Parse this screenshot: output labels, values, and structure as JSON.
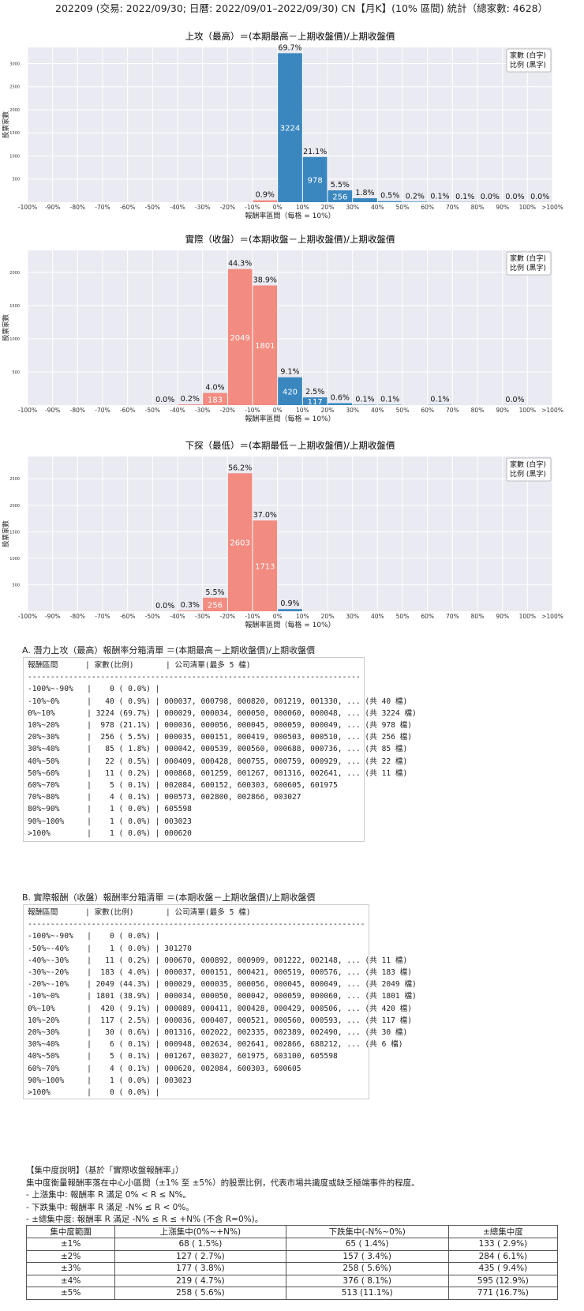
{
  "page_title": "202209 (交易: 2022/09/30; 日曆: 2022/09/01–2022/09/30) CN【月K】(10% 區間) 統計（總家數: 4628）",
  "chart_data": [
    {
      "type": "bar",
      "title": "上攻（最高）＝(本期最高－上期收盤價)/上期收盤價",
      "xlabel": "報酬率區間（每格 = 10%）",
      "ylabel": "股票家數",
      "legend": [
        "家數 (白字)",
        "比例 (黑字)"
      ],
      "legend_position": "top-right",
      "x_ticks": [
        "-100%",
        "-90%",
        "-80%",
        "-70%",
        "-60%",
        "-50%",
        "-40%",
        "-30%",
        "-20%",
        "-10%",
        "0%",
        "10%",
        "20%",
        "30%",
        "40%",
        "50%",
        "60%",
        "70%",
        "80%",
        "90%",
        "100%",
        ">100%"
      ],
      "y_ticks": [
        500,
        1000,
        1500,
        2000,
        2500,
        3000
      ],
      "ylim": [
        0,
        3350
      ],
      "bars": [
        {
          "bin": -2,
          "count": 0,
          "pct": "",
          "color": "neg"
        },
        {
          "bin": -1,
          "count": 40,
          "pct": "0.9%",
          "color": "neg"
        },
        {
          "bin": 0,
          "count": 3224,
          "pct": "69.7%",
          "color": "pos"
        },
        {
          "bin": 1,
          "count": 978,
          "pct": "21.1%",
          "color": "pos"
        },
        {
          "bin": 2,
          "count": 256,
          "pct": "5.5%",
          "color": "pos"
        },
        {
          "bin": 3,
          "count": 85,
          "pct": "1.8%",
          "color": "pos"
        },
        {
          "bin": 4,
          "count": 22,
          "pct": "0.5%",
          "color": "pos"
        },
        {
          "bin": 5,
          "count": 11,
          "pct": "0.2%",
          "color": "pos"
        },
        {
          "bin": 6,
          "count": 5,
          "pct": "0.1%",
          "color": "pos"
        },
        {
          "bin": 7,
          "count": 4,
          "pct": "0.1%",
          "color": "pos"
        },
        {
          "bin": 8,
          "count": 1,
          "pct": "0.0%",
          "color": "pos"
        },
        {
          "bin": 9,
          "count": 1,
          "pct": "0.0%",
          "color": "pos"
        },
        {
          "bin": 10,
          "count": 1,
          "pct": "0.0%",
          "color": "pos"
        }
      ]
    },
    {
      "type": "bar",
      "title": "實際（收盤）＝(本期收盤－上期收盤價)/上期收盤價",
      "xlabel": "報酬率區間（每格 = 10%）",
      "ylabel": "股票家數",
      "legend": [
        "家數 (白字)",
        "比例 (黑字)"
      ],
      "legend_position": "top-right",
      "x_ticks": [
        "-100%",
        "-90%",
        "-80%",
        "-70%",
        "-60%",
        "-50%",
        "-40%",
        "-30%",
        "-20%",
        "-10%",
        "0%",
        "10%",
        "20%",
        "30%",
        "40%",
        "50%",
        "60%",
        "70%",
        "80%",
        "90%",
        "100%",
        ">100%"
      ],
      "y_ticks": [
        500,
        1000,
        1500,
        2000
      ],
      "ylim": [
        0,
        2330
      ],
      "bars": [
        {
          "bin": -5,
          "count": 1,
          "pct": "0.0%",
          "color": "neg"
        },
        {
          "bin": -4,
          "count": 11,
          "pct": "0.2%",
          "color": "neg"
        },
        {
          "bin": -3,
          "count": 183,
          "pct": "4.0%",
          "color": "neg"
        },
        {
          "bin": -2,
          "count": 2049,
          "pct": "44.3%",
          "color": "neg"
        },
        {
          "bin": -1,
          "count": 1801,
          "pct": "38.9%",
          "color": "neg"
        },
        {
          "bin": 0,
          "count": 420,
          "pct": "9.1%",
          "color": "pos"
        },
        {
          "bin": 1,
          "count": 117,
          "pct": "2.5%",
          "color": "pos"
        },
        {
          "bin": 2,
          "count": 30,
          "pct": "0.6%",
          "color": "pos"
        },
        {
          "bin": 3,
          "count": 6,
          "pct": "0.1%",
          "color": "pos"
        },
        {
          "bin": 4,
          "count": 5,
          "pct": "0.1%",
          "color": "pos"
        },
        {
          "bin": 6,
          "count": 4,
          "pct": "0.1%",
          "color": "pos"
        },
        {
          "bin": 9,
          "count": 1,
          "pct": "0.0%",
          "color": "pos"
        }
      ]
    },
    {
      "type": "bar",
      "title": "下探（最低）＝(本期最低－上期收盤價)/上期收盤價",
      "xlabel": "報酬率區間（每格 = 10%）",
      "ylabel": "股票家數",
      "legend": [
        "家數 (白字)",
        "比例 (黑字)"
      ],
      "legend_position": "top-right",
      "x_ticks": [
        "-100%",
        "-90%",
        "-80%",
        "-70%",
        "-60%",
        "-50%",
        "-40%",
        "-30%",
        "-20%",
        "-10%",
        "0%",
        "10%",
        "20%",
        "30%",
        "40%",
        "50%",
        "60%",
        "70%",
        "80%",
        "90%",
        "100%",
        ">100%"
      ],
      "y_ticks": [
        500,
        1000,
        1500,
        2000,
        2500
      ],
      "ylim": [
        0,
        2920
      ],
      "bars": [
        {
          "bin": -5,
          "count": 1,
          "pct": "0.0%",
          "color": "neg"
        },
        {
          "bin": -4,
          "count": 14,
          "pct": "0.3%",
          "color": "neg"
        },
        {
          "bin": -3,
          "count": 256,
          "pct": "5.5%",
          "color": "neg"
        },
        {
          "bin": -2,
          "count": 2603,
          "pct": "56.2%",
          "color": "neg"
        },
        {
          "bin": -1,
          "count": 1713,
          "pct": "37.0%",
          "color": "neg"
        },
        {
          "bin": 0,
          "count": 41,
          "pct": "0.9%",
          "color": "pos"
        }
      ]
    }
  ],
  "colors": {
    "pos": "#3a87c0",
    "neg": "#f28b80",
    "plot_bg": "#eaeaf2",
    "grid": "#ffffff"
  },
  "section_a": {
    "title": "A. 潛力上攻（最高）報酬率分箱清單 ＝(本期最高－上期收盤價)/上期收盤價",
    "lines": [
      "報酬區間      | 家數(比例)       | 公司清單(最多 5 檔)",
      "--------------------------------------------------------------------------------------------------",
      "-100%~-90%   |    0 ( 0.0%) |",
      "-10%~0%      |   40 ( 0.9%) | 000037, 000798, 000820, 001219, 001330, ... (共 40 檔)",
      "0%~10%       | 3224 (69.7%) | 000029, 000034, 000050, 000060, 000048, ... (共 3224 檔)",
      "10%~20%      |  978 (21.1%) | 000036, 000056, 000045, 000059, 000049, ... (共 978 檔)",
      "20%~30%      |  256 ( 5.5%) | 000035, 000151, 000419, 000503, 000510, ... (共 256 檔)",
      "30%~40%      |   85 ( 1.8%) | 000042, 000539, 000560, 000688, 000736, ... (共 85 檔)",
      "40%~50%      |   22 ( 0.5%) | 000409, 000428, 000755, 000759, 000929, ... (共 22 檔)",
      "50%~60%      |   11 ( 0.2%) | 000868, 001259, 001267, 001316, 002641, ... (共 11 檔)",
      "60%~70%      |    5 ( 0.1%) | 002084, 600152, 600303, 600605, 601975",
      "70%~80%      |    4 ( 0.1%) | 000573, 002800, 002866, 003027",
      "80%~90%      |    1 ( 0.0%) | 605598",
      "90%~100%     |    1 ( 0.0%) | 003023",
      ">100%        |    1 ( 0.0%) | 000620"
    ]
  },
  "section_b": {
    "title": "B. 實際報酬（收盤）報酬率分箱清單 ＝(本期收盤－上期收盤價)/上期收盤價",
    "lines": [
      "報酬區間      | 家數(比例)       | 公司清單(最多 5 檔)",
      "--------------------------------------------------------------------------------------------------",
      "-100%~-90%   |    0 ( 0.0%) |",
      "-50%~-40%    |    1 ( 0.0%) | 301270",
      "-40%~-30%    |   11 ( 0.2%) | 000670, 000892, 000909, 001222, 002148, ... (共 11 檔)",
      "-30%~-20%    |  183 ( 4.0%) | 000037, 000151, 000421, 000519, 000576, ... (共 183 檔)",
      "-20%~-10%    | 2049 (44.3%) | 000029, 000035, 000056, 000045, 000049, ... (共 2049 檔)",
      "-10%~0%      | 1801 (38.9%) | 000034, 000050, 000042, 000059, 000060, ... (共 1801 檔)",
      "0%~10%       |  420 ( 9.1%) | 000089, 000411, 000428, 000429, 000506, ... (共 420 檔)",
      "10%~20%      |  117 ( 2.5%) | 000036, 000407, 000521, 000560, 000593, ... (共 117 檔)",
      "20%~30%      |   30 ( 0.6%) | 001316, 002022, 002335, 002389, 002490, ... (共 30 檔)",
      "30%~40%      |    6 ( 0.1%) | 000948, 002634, 002641, 002866, 688212, ... (共 6 檔)",
      "40%~50%      |    5 ( 0.1%) | 001267, 003027, 601975, 603100, 605598",
      "60%~70%      |    4 ( 0.1%) | 000620, 002084, 600303, 600605",
      "90%~100%     |    1 ( 0.0%) | 003023",
      ">100%        |    0 ( 0.0%) |"
    ]
  },
  "concentration": {
    "notes": [
      "【集中度說明】（基於「實際收盤報酬率」）",
      "集中度衡量報酬率落在中心小區間（±1% 至 ±5%）的股票比例，代表市場共識度或缺乏極端事件的程度。",
      " - 上漲集中: 報酬率 R 滿足 0% < R ≤ N%。",
      " - 下跌集中: 報酬率 R 滿足 -N% ≤ R < 0%。",
      " - ±總集中度: 報酬率 R 滿足 -N% ≤ R ≤ +N% (不含 R=0%)。"
    ],
    "headers": [
      "集中度範圍",
      "上漲集中(0%~+N%)",
      "下跌集中(-N%~0%)",
      "±總集中度"
    ],
    "rows": [
      [
        "±1%",
        "68 ( 1.5%)",
        "65 ( 1.4%)",
        "133 ( 2.9%)"
      ],
      [
        "±2%",
        "127 ( 2.7%)",
        "157 ( 3.4%)",
        "284 ( 6.1%)"
      ],
      [
        "±3%",
        "177 ( 3.8%)",
        "258 ( 5.6%)",
        "435 ( 9.4%)"
      ],
      [
        "±4%",
        "219 ( 4.7%)",
        "376 ( 8.1%)",
        "595 (12.9%)"
      ],
      [
        "±5%",
        "258 ( 5.6%)",
        "513 (11.1%)",
        "771 (16.7%)"
      ]
    ]
  }
}
